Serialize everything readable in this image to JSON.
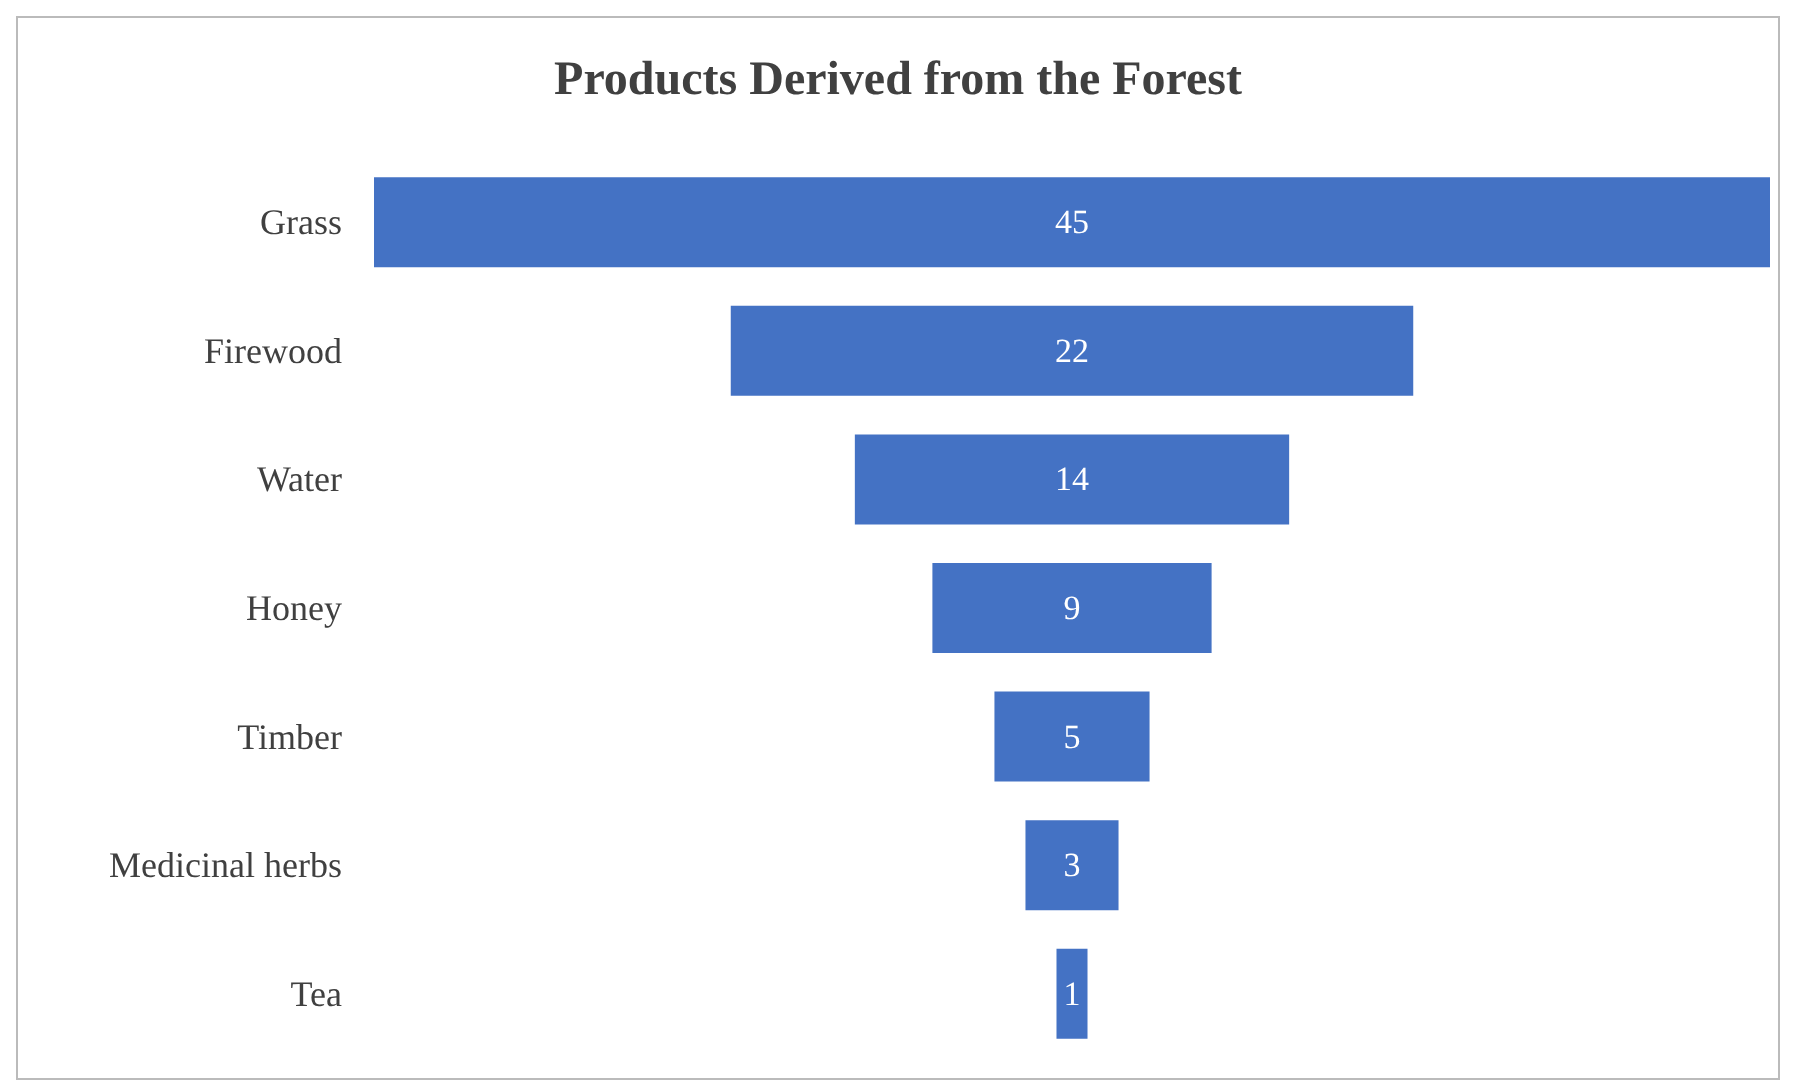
{
  "chart_data": {
    "type": "other",
    "title": "Products Derived from the Forest",
    "categories": [
      "Grass",
      "Firewood",
      "Water",
      "Honey",
      "Timber",
      "Medicinal herbs",
      "Tea"
    ],
    "values": [
      45,
      22,
      14,
      9,
      5,
      3,
      1
    ],
    "color": "#4472c4",
    "data_labels": true
  }
}
